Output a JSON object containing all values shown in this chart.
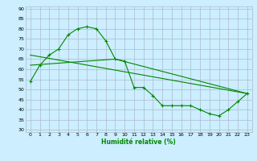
{
  "xlabel": "Humidité relative (%)",
  "bg_color": "#cceeff",
  "grid_color": "#aabbcc",
  "line_color": "#008800",
  "xlim": [
    -0.5,
    23.5
  ],
  "ylim": [
    29,
    91
  ],
  "xticks": [
    0,
    1,
    2,
    3,
    4,
    5,
    6,
    7,
    8,
    9,
    10,
    11,
    12,
    13,
    14,
    15,
    16,
    17,
    18,
    19,
    20,
    21,
    22,
    23
  ],
  "yticks": [
    30,
    35,
    40,
    45,
    50,
    55,
    60,
    65,
    70,
    75,
    80,
    85,
    90
  ],
  "line1_x": [
    0,
    1,
    2,
    3,
    4,
    5,
    6,
    7,
    8,
    9,
    10,
    11,
    12,
    13,
    14,
    15,
    16,
    17,
    18,
    19,
    20,
    21,
    22,
    23
  ],
  "line1_y": [
    54,
    62,
    67,
    70,
    77,
    80,
    81,
    80,
    74,
    65,
    64,
    51,
    51,
    47,
    42,
    42,
    42,
    42,
    40,
    38,
    37,
    40,
    44,
    48
  ],
  "line2_x": [
    0,
    23
  ],
  "line2_y": [
    67,
    48
  ],
  "line3_x": [
    0,
    9,
    23
  ],
  "line3_y": [
    62,
    65,
    48
  ]
}
